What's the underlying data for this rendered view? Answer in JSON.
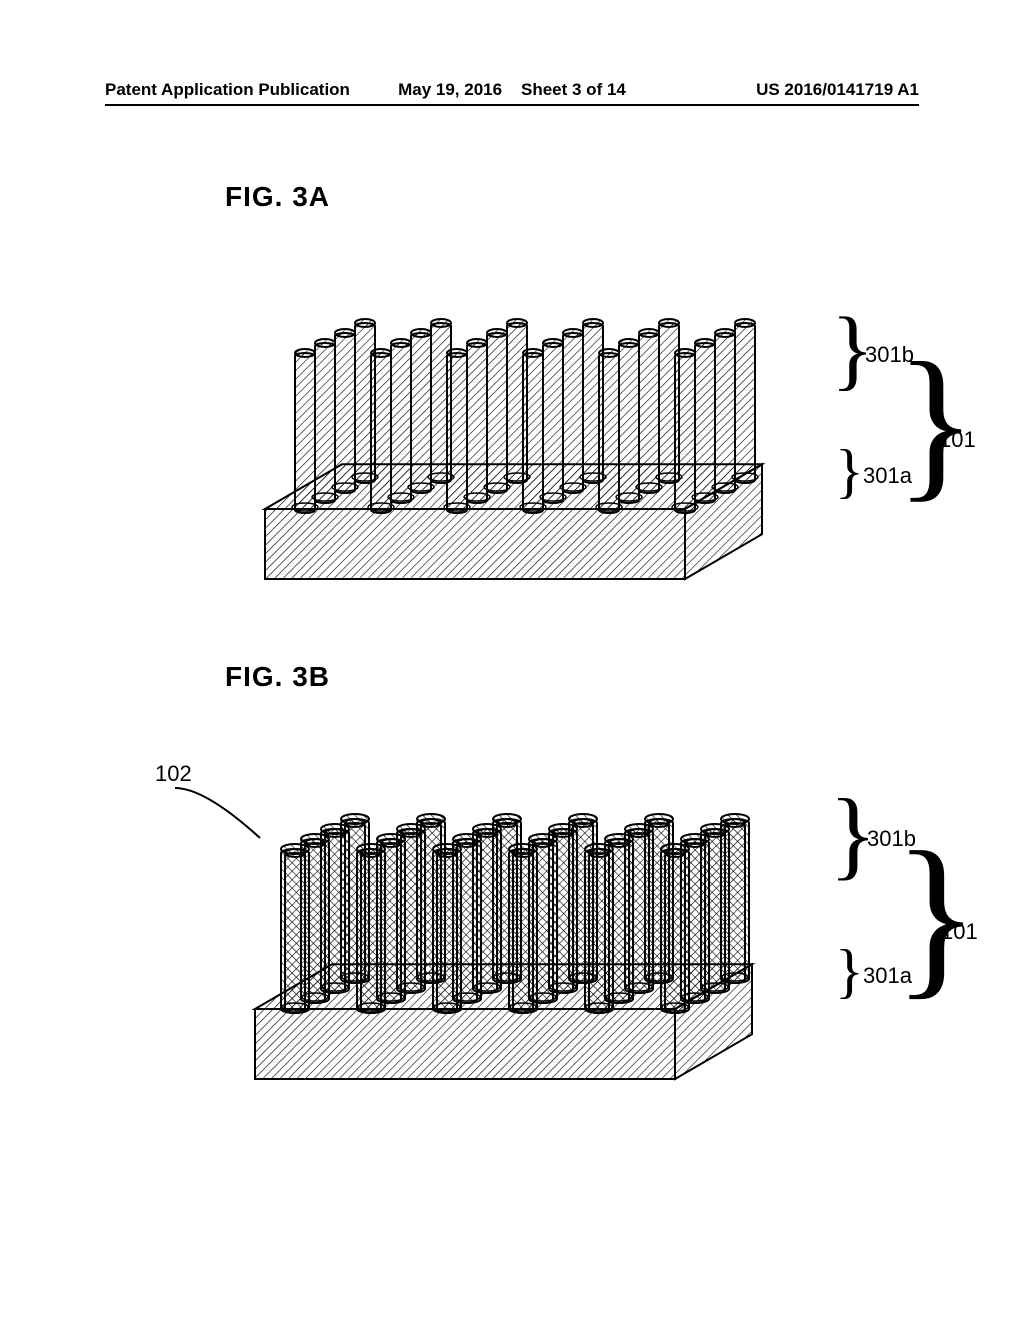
{
  "header": {
    "left": "Patent Application Publication",
    "date": "May 19, 2016",
    "sheet": "Sheet 3 of 14",
    "pubno": "US 2016/0141719 A1"
  },
  "figA": {
    "label": "FIG. 3A",
    "callout_301b": "301b",
    "callout_301a": "301a",
    "callout_101": "101"
  },
  "figB": {
    "label": "FIG. 3B",
    "callout_102": "102",
    "callout_301b": "301b",
    "callout_301a": "301a",
    "callout_101": "101"
  },
  "diagram": {
    "hatch_stroke": "#000000",
    "hatch_spacing": 6,
    "outline_stroke": "#000000",
    "outline_width": 2,
    "fill": "#ffffff",
    "rows": 4,
    "cols": 6,
    "pin_height": 160,
    "pin_width": 20,
    "base_height": 70,
    "base_width": 420,
    "base_depth": 140,
    "iso_dx": 20,
    "iso_dy": 10
  }
}
